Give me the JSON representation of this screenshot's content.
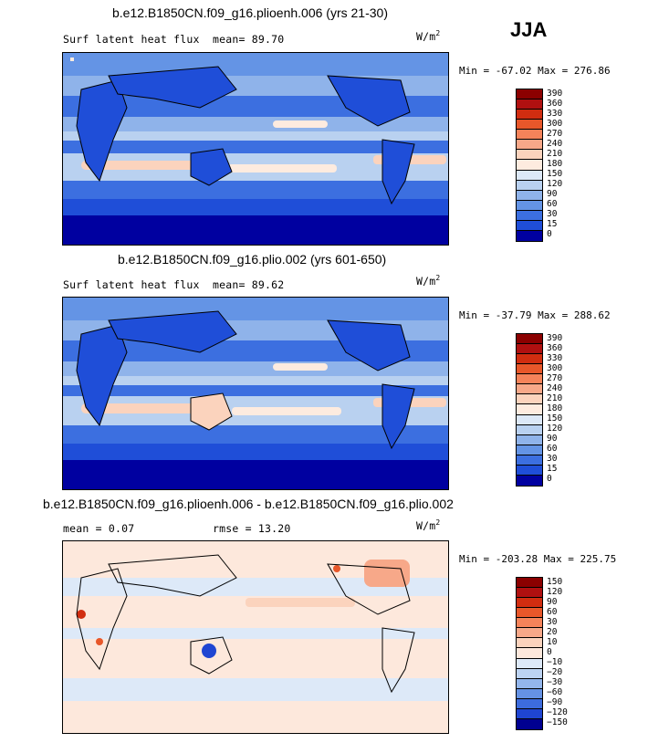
{
  "season": "JJA",
  "panels": [
    {
      "title": "b.e12.B1850CN.f09_g16.plioenh.006 (yrs 21-30)",
      "variable": "Surf latent heat flux",
      "stat_text": "mean=  89.70",
      "units": "W/m",
      "units_sup": "2",
      "minmax": "Min = -67.02 Max = 276.86",
      "colorbar": [
        "390",
        "360",
        "330",
        "300",
        "270",
        "240",
        "210",
        "180",
        "150",
        "120",
        "90",
        "60",
        "30",
        "15",
        "0"
      ],
      "colors": [
        "#8b0000",
        "#b01010",
        "#d12d10",
        "#e8572a",
        "#f5835a",
        "#f7a889",
        "#fbd3bd",
        "#fdebdf",
        "#dce8f7",
        "#b9d1f0",
        "#8fb3ea",
        "#6494e5",
        "#3c6fe0",
        "#1f4ed8",
        "#0000a0"
      ]
    },
    {
      "title": "b.e12.B1850CN.f09_g16.plio.002 (yrs 601-650)",
      "variable": "Surf latent heat flux",
      "stat_text": "mean=  89.62",
      "units": "W/m",
      "units_sup": "2",
      "minmax": "Min = -37.79 Max = 288.62",
      "colorbar": [
        "390",
        "360",
        "330",
        "300",
        "270",
        "240",
        "210",
        "180",
        "150",
        "120",
        "90",
        "60",
        "30",
        "15",
        "0"
      ],
      "colors": [
        "#8b0000",
        "#b01010",
        "#d12d10",
        "#e8572a",
        "#f5835a",
        "#f7a889",
        "#fbd3bd",
        "#fdebdf",
        "#dce8f7",
        "#b9d1f0",
        "#8fb3ea",
        "#6494e5",
        "#3c6fe0",
        "#1f4ed8",
        "#0000a0"
      ]
    },
    {
      "title": "b.e12.B1850CN.f09_g16.plioenh.006 - b.e12.B1850CN.f09_g16.plio.002",
      "variable": "mean =   0.07",
      "stat_text": "rmse =  13.20",
      "units": "W/m",
      "units_sup": "2",
      "minmax": "Min = -203.28 Max = 225.75",
      "colorbar": [
        "150",
        "120",
        "90",
        "60",
        "30",
        "20",
        "10",
        "0",
        "−10",
        "−20",
        "−30",
        "−60",
        "−90",
        "−120",
        "−150"
      ],
      "colors": [
        "#8b0000",
        "#b01010",
        "#d12d10",
        "#e8572a",
        "#f5835a",
        "#f7a889",
        "#fbd3bd",
        "#fde8dc",
        "#dde9f8",
        "#bcd3f2",
        "#93b6ec",
        "#6592e4",
        "#3d6cdd",
        "#1f45d2",
        "#000090"
      ]
    }
  ],
  "chart_data": [
    {
      "type": "heatmap",
      "title": "b.e12.B1850CN.f09_g16.plioenh.006 (yrs 21-30)",
      "field": "Surf latent heat flux",
      "season": "JJA",
      "mean": 89.7,
      "min": -67.02,
      "max": 276.86,
      "units": "W/m2",
      "contour_levels": [
        0,
        15,
        30,
        60,
        90,
        120,
        150,
        180,
        210,
        240,
        270,
        300,
        330,
        360,
        390
      ]
    },
    {
      "type": "heatmap",
      "title": "b.e12.B1850CN.f09_g16.plio.002 (yrs 601-650)",
      "field": "Surf latent heat flux",
      "season": "JJA",
      "mean": 89.62,
      "min": -37.79,
      "max": 288.62,
      "units": "W/m2",
      "contour_levels": [
        0,
        15,
        30,
        60,
        90,
        120,
        150,
        180,
        210,
        240,
        270,
        300,
        330,
        360,
        390
      ]
    },
    {
      "type": "heatmap",
      "title": "b.e12.B1850CN.f09_g16.plioenh.006 - b.e12.B1850CN.f09_g16.plio.002",
      "season": "JJA",
      "mean": 0.07,
      "rmse": 13.2,
      "min": -203.28,
      "max": 225.75,
      "units": "W/m2",
      "contour_levels": [
        -150,
        -120,
        -90,
        -60,
        -30,
        -20,
        -10,
        0,
        10,
        20,
        30,
        60,
        90,
        120,
        150
      ]
    }
  ]
}
